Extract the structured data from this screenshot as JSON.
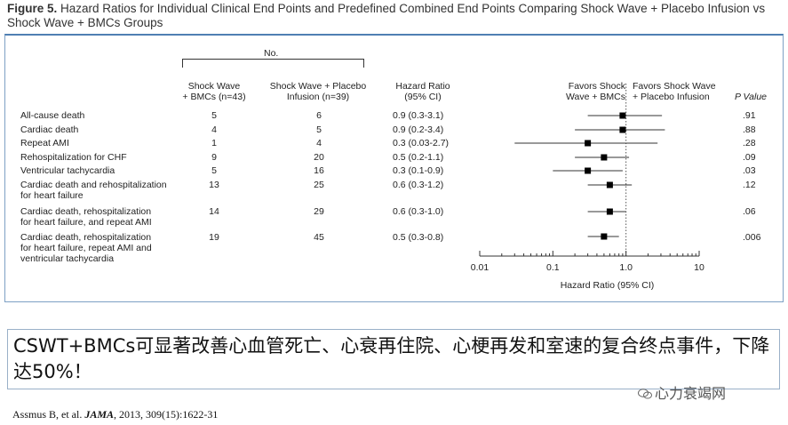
{
  "title": {
    "figure_label": "Figure 5.",
    "text": " Hazard Ratios for Individual Clinical End Points and Predefined Combined End Points Comparing Shock Wave + Placebo Infusion vs Shock Wave + BMCs Groups"
  },
  "table": {
    "no_label": "No.",
    "col_bmc": [
      "Shock Wave",
      "+ BMCs (n=43)"
    ],
    "col_placebo": [
      "Shock Wave + Placebo",
      "Infusion (n=39)"
    ],
    "col_hr": [
      "Hazard Ratio",
      "(95% CI)"
    ],
    "favors_bmc": [
      "Favors Shock",
      "Wave + BMCs"
    ],
    "favors_placebo": [
      "Favors Shock Wave",
      "+ Placebo Infusion"
    ],
    "col_p": "P Value",
    "rows": [
      {
        "label": [
          "All-cause death"
        ],
        "bmc": "5",
        "placebo": "6",
        "hr_text": "0.9 (0.3-3.1)",
        "p": ".91"
      },
      {
        "label": [
          "Cardiac death"
        ],
        "bmc": "4",
        "placebo": "5",
        "hr_text": "0.9 (0.2-3.4)",
        "p": ".88"
      },
      {
        "label": [
          "Repeat AMI"
        ],
        "bmc": "1",
        "placebo": "4",
        "hr_text": "0.3 (0.03-2.7)",
        "p": ".28"
      },
      {
        "label": [
          "Rehospitalization for CHF"
        ],
        "bmc": "9",
        "placebo": "20",
        "hr_text": "0.5 (0.2-1.1)",
        "p": ".09"
      },
      {
        "label": [
          "Ventricular tachycardia"
        ],
        "bmc": "5",
        "placebo": "16",
        "hr_text": "0.3 (0.1-0.9)",
        "p": ".03"
      },
      {
        "label": [
          "Cardiac death and rehospitalization",
          "for heart failure"
        ],
        "bmc": "13",
        "placebo": "25",
        "hr_text": "0.6 (0.3-1.2)",
        "p": ".12"
      },
      {
        "label": [
          "Cardiac death, rehospitalization",
          "for heart failure, and repeat AMI"
        ],
        "bmc": "14",
        "placebo": "29",
        "hr_text": "0.6 (0.3-1.0)",
        "p": ".06"
      },
      {
        "label": [
          "Cardiac death, rehospitalization",
          "for heart failure, repeat AMI and",
          "ventricular tachycardia"
        ],
        "bmc": "19",
        "placebo": "45",
        "hr_text": "0.5 (0.3-0.8)",
        "p": ".006"
      }
    ]
  },
  "chart_data": {
    "type": "forest",
    "xscale": "log",
    "xlim": [
      0.01,
      10
    ],
    "xticks": [
      "0.01",
      "0.1",
      "1.0",
      "10"
    ],
    "xlabel": "Hazard Ratio (95% CI)",
    "reference_line": 1.0,
    "points": [
      {
        "hr": 0.9,
        "lo": 0.3,
        "hi": 3.1
      },
      {
        "hr": 0.9,
        "lo": 0.2,
        "hi": 3.4
      },
      {
        "hr": 0.3,
        "lo": 0.03,
        "hi": 2.7
      },
      {
        "hr": 0.5,
        "lo": 0.2,
        "hi": 1.1
      },
      {
        "hr": 0.3,
        "lo": 0.1,
        "hi": 0.9
      },
      {
        "hr": 0.6,
        "lo": 0.3,
        "hi": 1.2
      },
      {
        "hr": 0.6,
        "lo": 0.3,
        "hi": 1.0
      },
      {
        "hr": 0.5,
        "lo": 0.3,
        "hi": 0.8
      }
    ],
    "marker_color": "#000000",
    "line_color": "#333333"
  },
  "note": {
    "text": "CSWT+BMCs可显著改善心血管死亡、心衰再住院、心梗再发和室速的复合终点事件，下降达50%！"
  },
  "brand": "心力衰竭网",
  "citation": {
    "prefix": "Assmus B, et al. ",
    "journal": "JAMA",
    "suffix": ", 2013, 309(15):1622-31"
  }
}
